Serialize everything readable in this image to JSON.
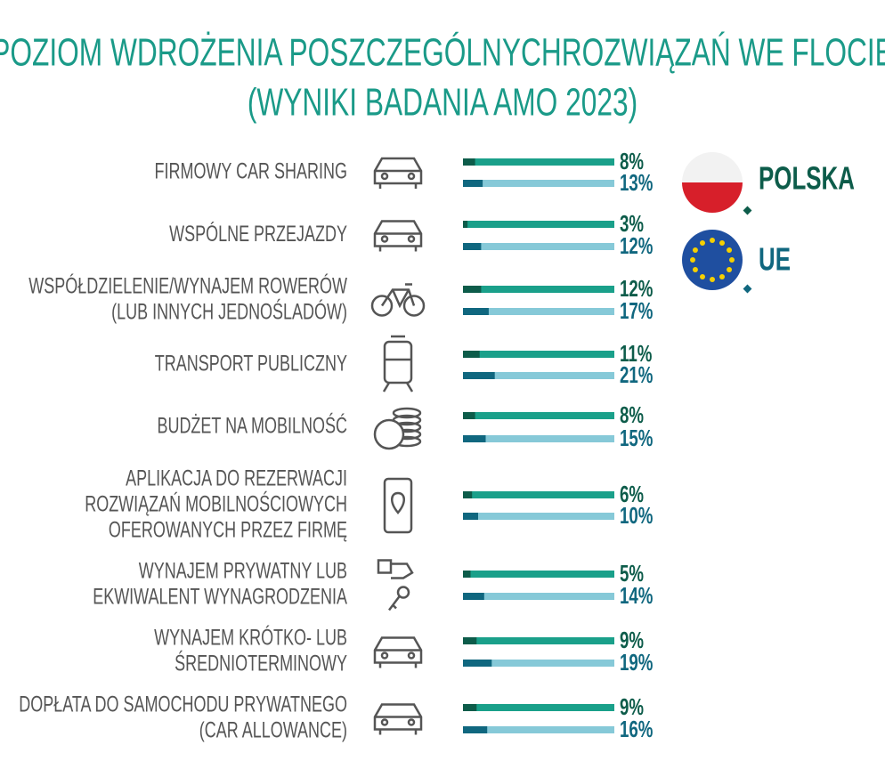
{
  "chart_data": {
    "type": "progress-bar",
    "title": [
      "POZIOM WDROŻENIA POSZCZEGÓLNYCHROZWIĄZAŃ WE FLOCIE",
      "(WYNIKI BADANIA AMO 2023)"
    ],
    "categories": [
      [
        "FIRMOWY CAR SHARING"
      ],
      [
        "WSPÓLNE PRZEJAZDY"
      ],
      [
        "WSPÓŁDZIELENIE/WYNAJEM ROWERÓW",
        "(LUB INNYCH JEDNOŚLADÓW)"
      ],
      [
        "TRANSPORT PUBLICZNY"
      ],
      [
        "BUDŻET NA MOBILNOŚĆ"
      ],
      [
        "APLIKACJA DO REZERWACJI",
        "ROZWIĄZAŃ MOBILNOŚCIOWYCH",
        "OFEROWANYCH PRZEZ FIRMĘ"
      ],
      [
        "WYNAJEM PRYWATNY LUB",
        "EKWIWALENT WYNAGRODZENIA"
      ],
      [
        "WYNAJEM KRÓTKO- LUB",
        "ŚREDNIOTERMINOWY"
      ],
      [
        "DOPŁATA DO SAMOCHODU PRYWATNEGO",
        "(CAR ALLOWANCE)"
      ]
    ],
    "series": [
      {
        "name": "POLSKA",
        "color": "#0d5c4a",
        "track_color": "#1aa08a",
        "values": [
          8,
          3,
          12,
          11,
          8,
          6,
          5,
          9,
          9
        ],
        "value_labels": [
          "8%",
          "3%",
          "12%",
          "11%",
          "8%",
          "6%",
          "5%",
          "9%",
          "9%"
        ]
      },
      {
        "name": "UE",
        "color": "#10677f",
        "track_color": "#86c9d8",
        "values": [
          13,
          12,
          17,
          21,
          15,
          10,
          14,
          19,
          16
        ],
        "value_labels": [
          "13%",
          "12%",
          "17%",
          "21%",
          "15%",
          "10%",
          "14%",
          "19%",
          "16%"
        ]
      }
    ],
    "xlim": [
      0,
      100
    ]
  }
}
